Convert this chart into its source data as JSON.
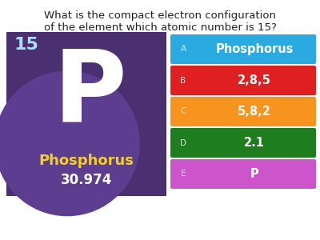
{
  "title_line1": "What is the compact electron configuration",
  "title_line2": "of the element which atomic number is 15?",
  "title_fontsize": 9.5,
  "bg_color": "#ffffff",
  "element_bg": "#4a3070",
  "element_circle_color": "#5c3d8f",
  "element_symbol": "P",
  "element_number": "15",
  "element_name": "Phosphorus",
  "element_mass": "30.974",
  "element_number_color": "#aaddff",
  "element_name_color": "#f5d020",
  "element_mass_color": "#ffffff",
  "element_symbol_color": "#ffffff",
  "options": [
    {
      "label": "A",
      "text": "Phosphorus",
      "color": "#29abe2"
    },
    {
      "label": "B",
      "text": "2,8,5",
      "color": "#e02020"
    },
    {
      "label": "C",
      "text": "5,8,2",
      "color": "#f7941d"
    },
    {
      "label": "D",
      "text": "2.1",
      "color": "#1e7e1e"
    },
    {
      "label": "E",
      "text": "P",
      "color": "#cc55cc"
    }
  ]
}
